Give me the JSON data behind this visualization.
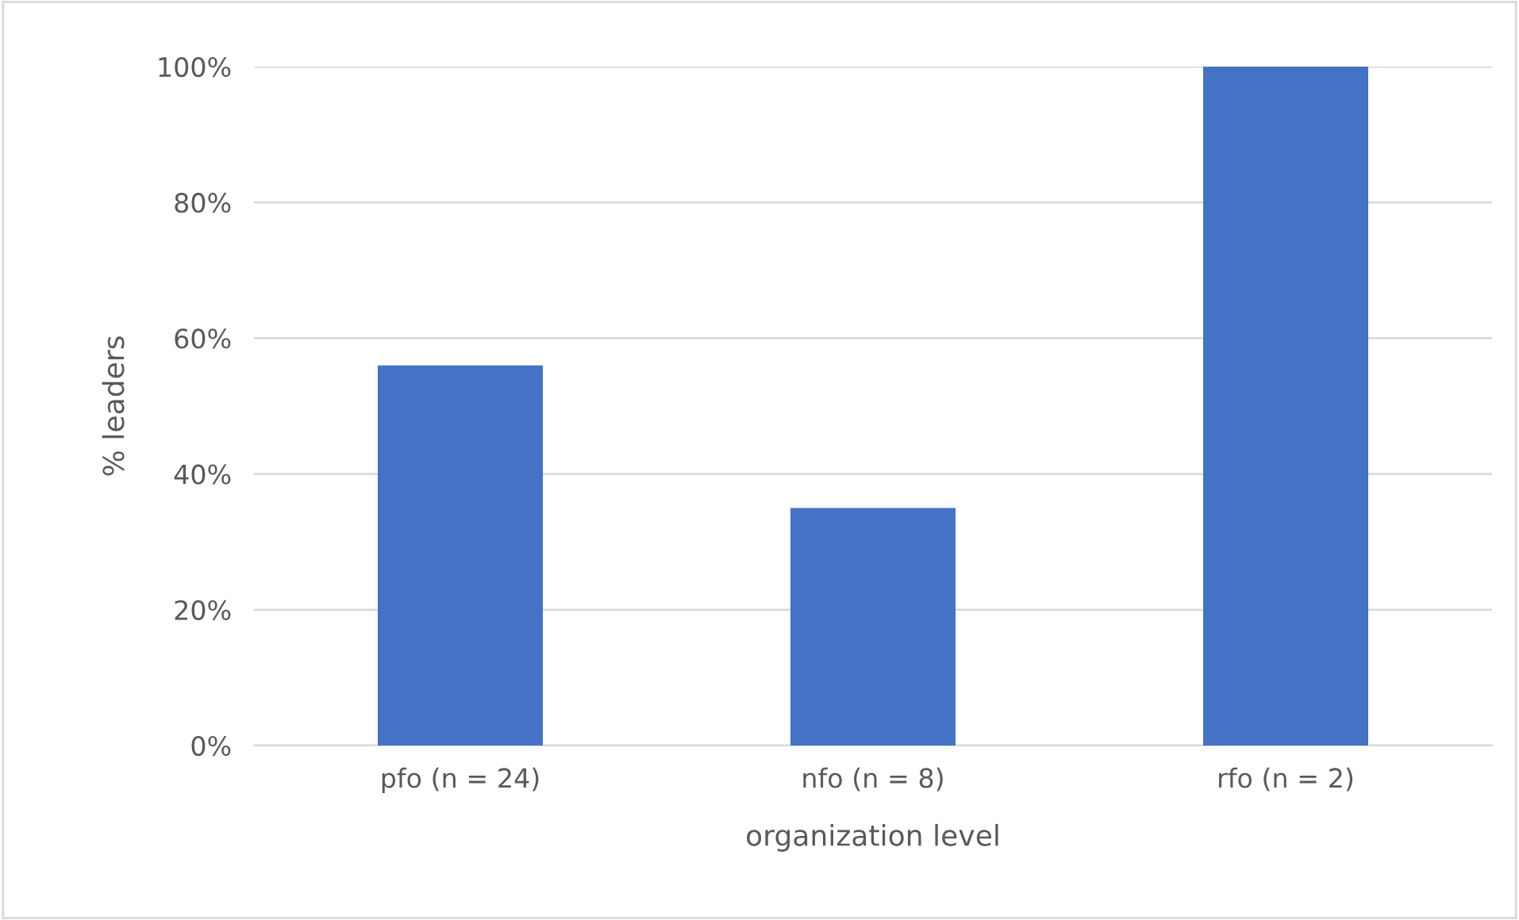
{
  "chart_data": {
    "type": "bar",
    "xlabel": "organization level",
    "ylabel": "% leaders",
    "categories": [
      "pfo (n = 24)",
      "nfo (n = 8)",
      "rfo (n = 2)"
    ],
    "values": [
      56,
      35,
      100
    ],
    "color": "#4472c4",
    "ylim": [
      0,
      100
    ],
    "yticks": [
      {
        "value": 0,
        "label": "0%"
      },
      {
        "value": 20,
        "label": "20%"
      },
      {
        "value": 40,
        "label": "40%"
      },
      {
        "value": 60,
        "label": "60%"
      },
      {
        "value": 80,
        "label": "80%"
      },
      {
        "value": 100,
        "label": "100%"
      }
    ],
    "grid": "y",
    "legend": false
  }
}
